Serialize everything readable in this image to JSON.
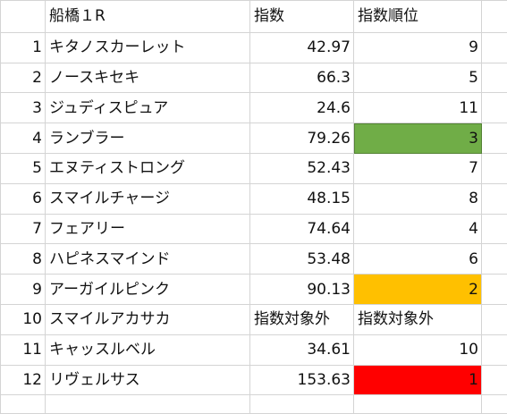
{
  "header": {
    "race": "船橋１R",
    "index": "指数",
    "rank": "指数順位"
  },
  "rows": [
    {
      "num": "1",
      "name": "キタノスカーレット",
      "index": "42.97",
      "rank": "9",
      "highlight": ""
    },
    {
      "num": "2",
      "name": "ノースキセキ",
      "index": "66.3",
      "rank": "5",
      "highlight": ""
    },
    {
      "num": "3",
      "name": "ジュディスピュア",
      "index": "24.6",
      "rank": "11",
      "highlight": ""
    },
    {
      "num": "4",
      "name": "ランブラー",
      "index": "79.26",
      "rank": "3",
      "highlight": "#70ad47"
    },
    {
      "num": "5",
      "name": "エヌティストロング",
      "index": "52.43",
      "rank": "7",
      "highlight": ""
    },
    {
      "num": "6",
      "name": "スマイルチャージ",
      "index": "48.15",
      "rank": "8",
      "highlight": ""
    },
    {
      "num": "7",
      "name": "フェアリー",
      "index": "74.64",
      "rank": "4",
      "highlight": ""
    },
    {
      "num": "8",
      "name": "ハピネスマインド",
      "index": "53.48",
      "rank": "6",
      "highlight": ""
    },
    {
      "num": "9",
      "name": "アーガイルピンク",
      "index": "90.13",
      "rank": "2",
      "highlight": "#ffc000"
    },
    {
      "num": "10",
      "name": "スマイルアカサカ",
      "index": "指数対象外",
      "rank": "指数対象外",
      "highlight": ""
    },
    {
      "num": "11",
      "name": "キャッスルベル",
      "index": "34.61",
      "rank": "10",
      "highlight": ""
    },
    {
      "num": "12",
      "name": "リヴェルサス",
      "index": "153.63",
      "rank": "1",
      "highlight": "#ff0000"
    }
  ]
}
